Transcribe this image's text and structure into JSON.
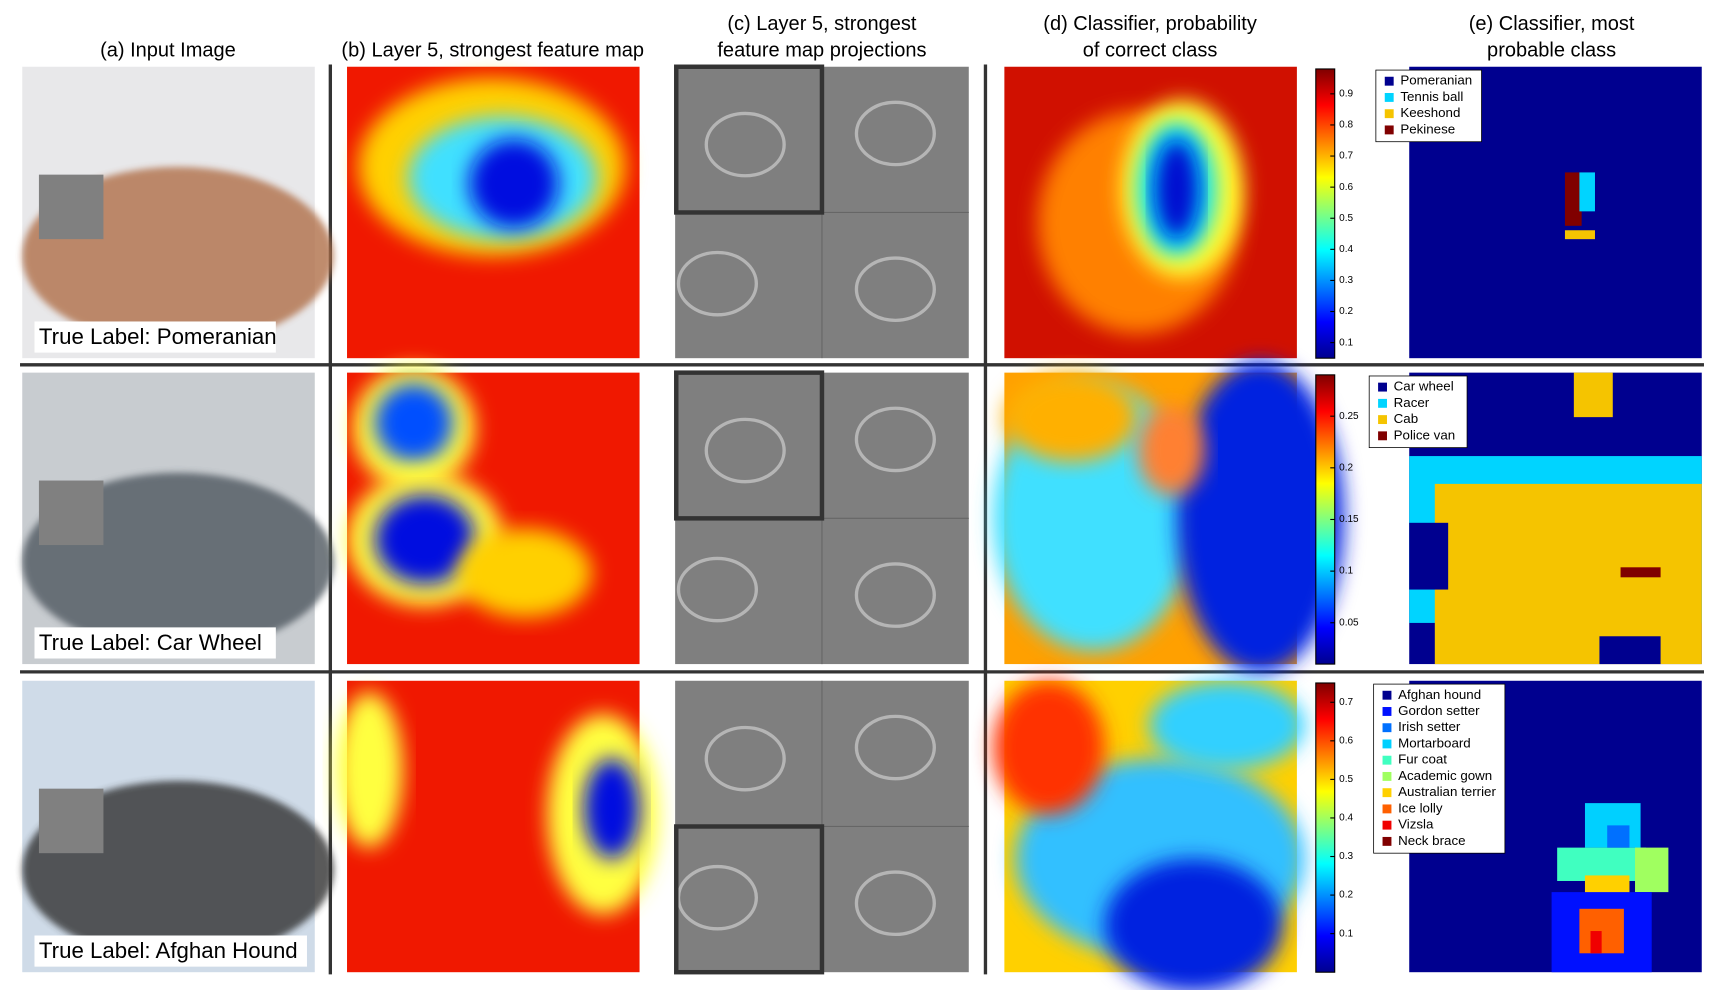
{
  "headers": [
    [
      "(a) Input Image"
    ],
    [
      "(b) Layer 5, strongest feature map"
    ],
    [
      "(c) Layer 5, strongest",
      "feature map projections"
    ],
    [
      "(d) Classifier, probability",
      "of correct class"
    ],
    [
      "(e) Classifier, most",
      "probable class"
    ]
  ],
  "rows": [
    {
      "true_label": "True Label: Pomeranian",
      "colorbar": {
        "lim": [
          0.05,
          0.98
        ],
        "ticks": [
          0.1,
          0.2,
          0.3,
          0.4,
          0.5,
          0.6,
          0.7,
          0.8,
          0.9
        ]
      },
      "legend": [
        {
          "name": "Pomeranian",
          "color": "#00008f"
        },
        {
          "name": "Tennis ball",
          "color": "#00d4ff"
        },
        {
          "name": "Keeshond",
          "color": "#f5c400"
        },
        {
          "name": "Pekinese",
          "color": "#800000"
        }
      ]
    },
    {
      "true_label": "True Label: Car Wheel",
      "colorbar": {
        "lim": [
          0.01,
          0.29
        ],
        "ticks": [
          0.05,
          0.1,
          0.15,
          0.2,
          0.25
        ]
      },
      "legend": [
        {
          "name": "Car wheel",
          "color": "#00008f"
        },
        {
          "name": "Racer",
          "color": "#00d4ff"
        },
        {
          "name": "Cab",
          "color": "#f5c400"
        },
        {
          "name": "Police van",
          "color": "#800000"
        }
      ]
    },
    {
      "true_label": "True Label: Afghan Hound",
      "colorbar": {
        "lim": [
          0.0,
          0.75
        ],
        "ticks": [
          0.1,
          0.2,
          0.3,
          0.4,
          0.5,
          0.6,
          0.7
        ]
      },
      "legend": [
        {
          "name": "Afghan hound",
          "color": "#00008f"
        },
        {
          "name": "Gordon setter",
          "color": "#0010ff"
        },
        {
          "name": "Irish setter",
          "color": "#0070ff"
        },
        {
          "name": "Mortarboard",
          "color": "#00d0ff"
        },
        {
          "name": "Fur coat",
          "color": "#40ffc0"
        },
        {
          "name": "Academic gown",
          "color": "#a0ff60"
        },
        {
          "name": "Australian terrier",
          "color": "#ffd000"
        },
        {
          "name": "Ice lolly",
          "color": "#ff6000"
        },
        {
          "name": "Vizsla",
          "color": "#f00000"
        },
        {
          "name": "Neck brace",
          "color": "#800000"
        }
      ]
    }
  ]
}
